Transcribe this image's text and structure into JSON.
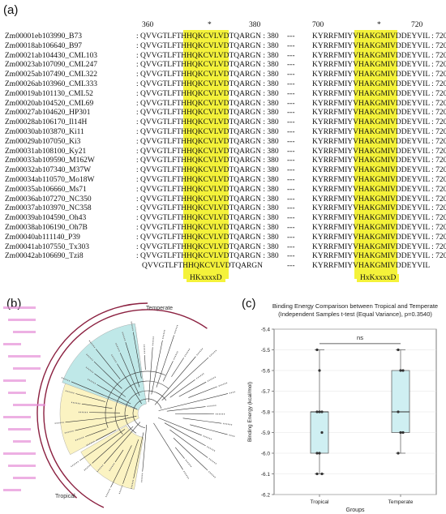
{
  "labels": {
    "a": "(a)",
    "b": "(b)",
    "c": "(c)"
  },
  "alignment": {
    "position_labels": {
      "p360": "360",
      "star1": "*",
      "p380": "380",
      "p700": "700",
      "star2": "*",
      "p720": "720"
    },
    "rows": [
      {
        "name": "Zm00001eb103990_B73",
        "left": ": QVVGTLFTHHQKCVLVDTQARGN : 380",
        "gap": "---",
        "right": "KYRRFMIYVHAKGMIVDDEYVIL : 720"
      },
      {
        "name": "Zm00018ab106640_B97",
        "left": ": QVVGTLFTHHQKCVLVDTQARGN : 380",
        "gap": "---",
        "right": "KYRRFMIYVHAKGMIVDDEYVIL : 720"
      },
      {
        "name": "Zm00021ab104430_CML103",
        "left": ": QVVGTLFTHHQKCVLVDTQARGN : 380",
        "gap": "---",
        "right": "KYRRFMIYVHAKGMIVDDEYVIL : 720"
      },
      {
        "name": "Zm00023ab107090_CML247",
        "left": ": QVVGTLFTHHQKCVLVDTQARGN : 380",
        "gap": "---",
        "right": "KYRRFMIYVHAKGMIVDDEYVIL : 720"
      },
      {
        "name": "Zm00025ab107490_CML322",
        "left": ": QVVGTLFTHHQKCVLVDTQARGN : 380",
        "gap": "---",
        "right": "KYRRFMIYVHAKGMIVDDEYVIL : 720"
      },
      {
        "name": "Zm00026ab103960_CML333",
        "left": ": QVVGTLFTHHQKCVLVDTQARGN : 380",
        "gap": "---",
        "right": "KYRRFMIYVHAKGMIVDDEYVIL : 720"
      },
      {
        "name": "Zm00019ab101130_CML52",
        "left": ": QVVGTLFTHHQKCVLVDTQARGN : 380",
        "gap": "---",
        "right": "KYRRFMIYVHAKGMIVDDEYVIL : 720"
      },
      {
        "name": "Zm00020ab104520_CML69",
        "left": ": QVVGTLFTHHQKCVLVDTQARGN : 380",
        "gap": "---",
        "right": "KYRRFMIYVHAKGMIVDDEYVIL : 720"
      },
      {
        "name": "Zm00027ab104620_HP301",
        "left": ": QVVGTLFTHHQKCVLVDTQARGN : 380",
        "gap": "---",
        "right": "KYRRFMIYVHAKGMIVDDEYVIL : 720"
      },
      {
        "name": "Zm00028ab106170_Il14H",
        "left": ": QVVGTLFTHHQKCVLVDTQARGN : 380",
        "gap": "---",
        "right": "KYRRFMIYVHAKGMIVDDEYVIL : 720"
      },
      {
        "name": "Zm00030ab103870_Ki11",
        "left": ": QVVGTLFTHHQKCVLVDTQARGN : 380",
        "gap": "---",
        "right": "KYRRFMIYVHAKGMIVDDEYVIL : 720"
      },
      {
        "name": "Zm00029ab107050_Ki3",
        "left": ": QVVGTLFTHHQKCVLVDTQARGN : 380",
        "gap": "---",
        "right": "KYRRFMIYVHAKGMIVDDEYVIL : 720"
      },
      {
        "name": "Zm00031ab108100_Ky21",
        "left": ": QVVGTLFTHHQKCVLVDTQARGN : 380",
        "gap": "---",
        "right": "KYRRFMIYVHAKGMIVDDEYVIL : 720"
      },
      {
        "name": "Zm00033ab109590_M162W",
        "left": ": QVVGTLFTHHQKCVLVDTQARGN : 380",
        "gap": "---",
        "right": "KYRRFMIYVHAKGMIVDDEYVIL : 720"
      },
      {
        "name": "Zm00032ab107340_M37W",
        "left": ": QVVGTLFTHHQKCVLVDTQARGN : 380",
        "gap": "---",
        "right": "KYRRFMIYVHAKGMIVDDEYVIL : 720"
      },
      {
        "name": "Zm00034ab110570_Mo18W",
        "left": ": QVVGTLFTHHQKCVLVDTQARGN : 380",
        "gap": "---",
        "right": "KYRRFMIYVHAKGMIVDDEYVIL : 720"
      },
      {
        "name": "Zm00035ab106660_Ms71",
        "left": ": QVVGTLFTHHQKCVLVDTQARGN : 380",
        "gap": "---",
        "right": "KYRRFMIYVHAKGMIVDDEYVIL : 720"
      },
      {
        "name": "Zm00036ab107270_NC350",
        "left": ": QVVGTLFTHHQKCVLVDTQARGN : 380",
        "gap": "---",
        "right": "KYRRFMIYVHAKGMIVDDEYVIL : 720"
      },
      {
        "name": "Zm00037ab103970_NC358",
        "left": ": QVVGTLFTHHQKCVLVDTQARGN : 380",
        "gap": "---",
        "right": "KYRRFMIYVHAKGMIVDDEYVIL : 720"
      },
      {
        "name": "Zm00039ab104590_Oh43",
        "left": ": QVVGTLFTHHQKCVLVDTQARGN : 380",
        "gap": "---",
        "right": "KYRRFMIYVHAKGMIVDDEYVIL : 720"
      },
      {
        "name": "Zm00038ab106190_Oh7B",
        "left": ": QVVGTLFTHHQKCVLVDTQARGN : 380",
        "gap": "---",
        "right": "KYRRFMIYVHAKGMIVDDEYVIL : 720"
      },
      {
        "name": "Zm00040ab111140_P39",
        "left": ": QVVGTLFTHHQKCVLVDTQARGN : 380",
        "gap": "---",
        "right": "KYRRFMIYVHAKGMIVDDEYVIL : 720"
      },
      {
        "name": "Zm00041ab107550_Tx303",
        "left": ": QVVGTLFTHHQKCVLVDTQARGN : 380",
        "gap": "---",
        "right": "KYRRFMIYVHAKGMIVDDEYVIL : 720"
      },
      {
        "name": "Zm00042ab106690_Tzi8",
        "left": ": QVVGTLFTHHQKCVLVDTQARGN : 380",
        "gap": "---",
        "right": "KYRRFMIYVHAKGMIVDDEYVIL : 720"
      }
    ],
    "consensus": {
      "left": "QVVGTLFTHHQKCVLVDTQARGN",
      "gap": "---",
      "right": "KYRRFMIYVHAKGMIVDDEYVIL"
    },
    "motifs": {
      "left": "HKxxxxD",
      "right": "HxKxxxxD"
    },
    "highlight_color": "#f4f23a"
  },
  "tree": {
    "clade_labels": {
      "temperate": "Temperate",
      "tropical": "Tropical"
    },
    "colors": {
      "temperate_fill": "#bfe8e8",
      "tropical_fill": "#fbf3c2",
      "arc": "#8b2040",
      "tip_labels": "#e58fd7"
    }
  },
  "chart_data": {
    "type": "box",
    "title": "Binding Energy Comparison between Tropical and Temperate",
    "subtitle": "(Independent Samples t-test (Equal Variance), p=0.3540)",
    "xlabel": "Groups",
    "ylabel": "Binding Energy (kcal/mol)",
    "ylim": [
      -6.2,
      -5.4
    ],
    "yticks": [
      -5.4,
      -5.5,
      -5.6,
      -5.7,
      -5.8,
      -5.9,
      -6.0,
      -6.1,
      -6.2
    ],
    "categories": [
      "Tropical",
      "Temperate"
    ],
    "boxes": [
      {
        "name": "Tropical",
        "whisker_low": -6.1,
        "q1": -6.0,
        "median": -5.8,
        "q3": -5.8,
        "whisker_high": -5.5,
        "points": [
          -5.5,
          -5.6,
          -5.8,
          -5.8,
          -5.8,
          -5.9,
          -6.0,
          -6.0,
          -6.1,
          -6.1
        ]
      },
      {
        "name": "Temperate",
        "whisker_low": -6.0,
        "q1": -5.9,
        "median": -5.8,
        "q3": -5.6,
        "whisker_high": -5.5,
        "points": [
          -5.5,
          -5.6,
          -5.6,
          -5.8,
          -5.9,
          -5.9,
          -6.0
        ]
      }
    ],
    "significance": "ns",
    "grid": true,
    "box_color": "#cfeff2"
  }
}
